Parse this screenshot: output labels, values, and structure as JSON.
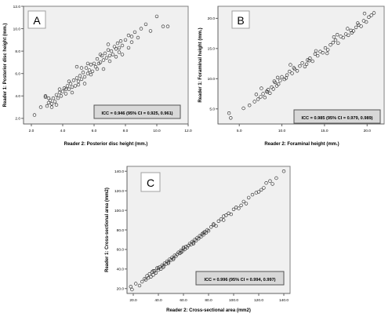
{
  "chart_data": [
    {
      "type": "scatter",
      "panel_label": "A",
      "xlabel": "Reader 2: Posterior disc height (mm.)",
      "ylabel": "Reader 1: Posterior disc height (mm.)",
      "xlim": [
        1.5,
        12.0
      ],
      "ylim": [
        1.5,
        12.0
      ],
      "x_ticks": [
        "2.0",
        "4.0",
        "6.0",
        "8.0",
        "10.0",
        "12.0"
      ],
      "y_ticks": [
        "2.0",
        "4.0",
        "6.0",
        "8.0",
        "10.0",
        "12.0"
      ],
      "annotation": "ICC = 0.946 (95% CI = 0.925, 0.961)",
      "grid": false,
      "background": "#f0f0f0",
      "x": [
        2.2,
        2.6,
        2.9,
        3.0,
        3.1,
        3.2,
        3.3,
        3.4,
        3.5,
        3.6,
        3.7,
        3.8,
        3.9,
        4.0,
        4.1,
        4.2,
        4.3,
        4.4,
        4.5,
        4.6,
        4.7,
        4.8,
        4.9,
        5.0,
        5.1,
        5.2,
        5.3,
        5.4,
        5.5,
        5.6,
        5.7,
        5.8,
        5.9,
        6.0,
        6.1,
        6.2,
        6.3,
        6.4,
        6.5,
        6.6,
        6.7,
        6.8,
        6.9,
        7.0,
        7.1,
        7.2,
        7.3,
        7.4,
        7.5,
        7.6,
        7.7,
        7.8,
        8.0,
        8.2,
        8.4,
        8.6,
        8.8,
        9.0,
        9.3,
        9.6,
        10.0,
        10.4,
        10.7,
        3.3,
        3.6,
        4.2,
        4.6,
        5.0,
        5.4,
        5.8,
        6.2,
        6.6,
        7.0,
        7.4,
        7.8,
        8.2,
        6.4,
        5.2,
        4.4,
        3.8,
        2.9,
        3.1,
        4.9,
        5.6,
        6.9,
        7.6,
        8.4
      ],
      "y": [
        2.3,
        3.0,
        3.9,
        3.1,
        3.4,
        3.6,
        3.3,
        3.8,
        3.5,
        4.1,
        3.8,
        4.3,
        4.0,
        4.4,
        4.7,
        4.2,
        4.9,
        4.6,
        5.1,
        4.8,
        5.4,
        4.9,
        5.6,
        5.3,
        5.8,
        5.5,
        6.1,
        5.7,
        6.5,
        6.0,
        6.3,
        6.8,
        6.2,
        6.9,
        6.6,
        7.3,
        6.9,
        7.0,
        7.6,
        7.2,
        7.8,
        7.4,
        8.1,
        7.6,
        8.0,
        7.7,
        8.4,
        8.2,
        8.7,
        7.9,
        8.9,
        8.5,
        9.0,
        9.4,
        8.8,
        9.7,
        9.2,
        10.0,
        10.4,
        9.8,
        11.1,
        10.2,
        10.2,
        3.0,
        3.2,
        4.6,
        4.3,
        5.0,
        5.1,
        5.9,
        6.4,
        6.4,
        7.1,
        7.5,
        7.7,
        8.3,
        7.7,
        6.5,
        5.3,
        4.6,
        4.0,
        3.8,
        6.6,
        6.9,
        8.6,
        8.3,
        9.3
      ]
    },
    {
      "type": "scatter",
      "panel_label": "B",
      "xlabel": "Reader 2: Foraminal height (mm.)",
      "ylabel": "Reader 1: Foraminal height (mm.)",
      "xlim": [
        2.5,
        22.0
      ],
      "ylim": [
        2.5,
        22.0
      ],
      "x_ticks": [
        "5.0",
        "10.0",
        "15.0",
        "20.0"
      ],
      "y_ticks": [
        "5.0",
        "10.0",
        "15.0",
        "20.0"
      ],
      "annotation": "ICC = 0.985 (95% CI = 0.979, 0.989)",
      "grid": false,
      "background": "#f0f0f0",
      "x": [
        3.8,
        4.0,
        5.5,
        6.2,
        6.8,
        7.0,
        7.2,
        7.5,
        7.8,
        8.0,
        8.2,
        8.4,
        8.6,
        8.8,
        9.0,
        9.2,
        9.4,
        9.6,
        9.8,
        10.0,
        10.3,
        10.6,
        10.9,
        11.2,
        11.5,
        11.8,
        12.1,
        12.4,
        12.7,
        13.0,
        13.3,
        13.6,
        13.9,
        14.2,
        14.5,
        14.8,
        15.1,
        15.4,
        15.7,
        16.0,
        16.3,
        16.6,
        16.9,
        17.2,
        17.5,
        17.8,
        18.1,
        18.4,
        18.7,
        19.0,
        19.3,
        19.6,
        19.9,
        20.2,
        20.5,
        20.8,
        7.6,
        8.3,
        9.1,
        10.5,
        11.4,
        12.9,
        14.0,
        15.3,
        16.5,
        17.7,
        18.9,
        19.7,
        13.2,
        11.0,
        9.5,
        16.1,
        18.2
      ],
      "y": [
        4.3,
        3.5,
        5.1,
        5.6,
        6.2,
        7.4,
        6.6,
        7.0,
        7.5,
        6.9,
        7.9,
        8.2,
        7.6,
        8.6,
        8.3,
        9.4,
        8.8,
        9.1,
        9.7,
        10.3,
        9.9,
        10.6,
        11.2,
        10.9,
        11.6,
        11.3,
        12.1,
        12.6,
        12.0,
        13.1,
        13.4,
        12.9,
        14.1,
        13.8,
        14.5,
        14.3,
        15.1,
        14.8,
        15.6,
        16.0,
        16.4,
        15.9,
        17.0,
        16.8,
        17.4,
        17.2,
        18.0,
        17.9,
        18.5,
        18.9,
        18.7,
        19.6,
        19.4,
        20.2,
        20.5,
        20.9,
        8.4,
        7.8,
        9.6,
        10.1,
        11.8,
        12.4,
        14.6,
        14.2,
        17.3,
        18.3,
        19.2,
        20.8,
        13.0,
        12.3,
        10.2,
        16.9,
        17.6
      ]
    },
    {
      "type": "scatter",
      "panel_label": "C",
      "xlabel": "Reader 2: Cross-sectional area (mm2)",
      "ylabel": "Reader 1: Cross-sectional area (mm2)",
      "xlim": [
        15,
        145
      ],
      "ylim": [
        15,
        145
      ],
      "x_ticks": [
        "20.0",
        "40.0",
        "60.0",
        "80.0",
        "100.0",
        "120.0",
        "140.0"
      ],
      "y_ticks": [
        "20.0",
        "40.0",
        "60.0",
        "80.0",
        "100.0",
        "120.0",
        "140.0"
      ],
      "annotation": "ICC = 0.996 (95% CI = 0.994, 0.997)",
      "grid": false,
      "background": "#f0f0f0",
      "x": [
        18,
        19,
        22,
        25,
        27,
        29,
        30,
        31,
        32,
        33,
        34,
        35,
        36,
        37,
        38,
        39,
        40,
        41,
        42,
        43,
        44,
        45,
        46,
        47,
        48,
        49,
        50,
        51,
        52,
        53,
        54,
        55,
        56,
        57,
        58,
        59,
        60,
        61,
        62,
        63,
        64,
        65,
        66,
        67,
        68,
        69,
        70,
        71,
        72,
        73,
        74,
        75,
        76,
        77,
        78,
        79,
        80,
        82,
        84,
        86,
        88,
        90,
        92,
        94,
        96,
        98,
        100,
        102,
        104,
        106,
        108,
        110,
        112,
        115,
        118,
        120,
        122,
        124,
        126,
        129,
        131,
        134,
        140,
        36,
        44,
        52,
        60,
        68,
        76,
        84,
        92,
        58,
        48,
        40
      ],
      "y": [
        22,
        19,
        25,
        23,
        27,
        30,
        29,
        33,
        31,
        35,
        32,
        37,
        34,
        38,
        36,
        41,
        39,
        42,
        40,
        44,
        43,
        46,
        45,
        48,
        46,
        50,
        49,
        52,
        51,
        54,
        53,
        55,
        57,
        56,
        59,
        58,
        61,
        60,
        63,
        62,
        64,
        66,
        65,
        68,
        67,
        70,
        69,
        72,
        71,
        74,
        73,
        76,
        75,
        78,
        77,
        80,
        79,
        83,
        85,
        84,
        89,
        91,
        90,
        95,
        97,
        96,
        101,
        103,
        102,
        105,
        109,
        107,
        113,
        116,
        118,
        119,
        121,
        123,
        128,
        130,
        127,
        133,
        140,
        38,
        42,
        50,
        62,
        66,
        77,
        86,
        94,
        57,
        47,
        41
      ]
    }
  ]
}
